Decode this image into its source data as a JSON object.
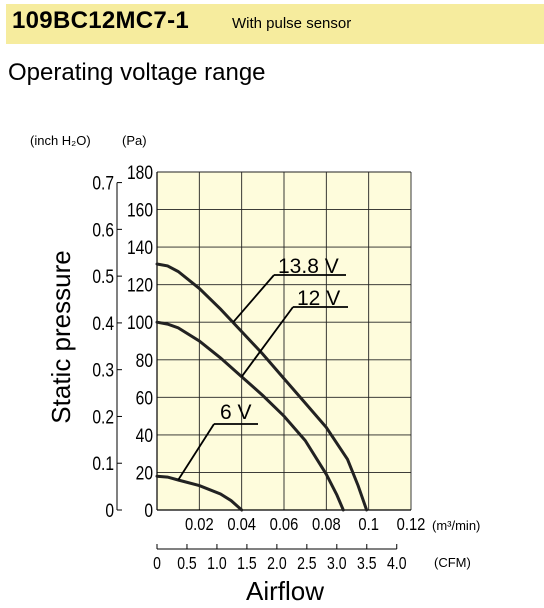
{
  "header": {
    "model": "109BC12MC7-1",
    "subtitle": "With pulse sensor",
    "section_title": "Operating voltage range"
  },
  "chart_data": {
    "type": "line",
    "title": "Operating voltage range",
    "xlabel": "Airflow",
    "ylabel": "Static pressure",
    "x_unit_top": "(m³/min)",
    "x_unit_bottom": "(CFM)",
    "y_unit_left": "(inch H₂O)",
    "y_unit_right": "(Pa)",
    "xlim": [
      0,
      0.12
    ],
    "ylim": [
      0,
      180
    ],
    "x_ticks": [
      "0.02",
      "0.04",
      "0.06",
      "0.08",
      "0.1",
      "0.12"
    ],
    "x_ticks_cfm": [
      "0",
      "0.5",
      "1.0",
      "1.5",
      "2.0",
      "2.5",
      "3.0",
      "3.5",
      "4.0"
    ],
    "y_ticks_pa": [
      "0",
      "20",
      "40",
      "60",
      "80",
      "100",
      "120",
      "140",
      "160",
      "180"
    ],
    "y_ticks_inch": [
      "0",
      "0.1",
      "0.2",
      "0.3",
      "0.4",
      "0.5",
      "0.6",
      "0.7"
    ],
    "grid": true,
    "series": [
      {
        "name": "13.8 V",
        "x": [
          0,
          0.005,
          0.01,
          0.02,
          0.03,
          0.04,
          0.05,
          0.06,
          0.07,
          0.08,
          0.09,
          0.095,
          0.099
        ],
        "y": [
          131,
          130,
          127,
          118,
          107,
          95,
          83,
          70,
          57,
          44,
          27,
          13,
          0
        ]
      },
      {
        "name": "12 V",
        "x": [
          0,
          0.005,
          0.01,
          0.02,
          0.03,
          0.04,
          0.05,
          0.06,
          0.07,
          0.08,
          0.085,
          0.088
        ],
        "y": [
          100,
          99,
          97,
          90,
          81,
          71,
          61,
          50,
          37,
          19,
          8,
          0
        ]
      },
      {
        "name": "6 V",
        "x": [
          0,
          0.005,
          0.01,
          0.02,
          0.03,
          0.035,
          0.04
        ],
        "y": [
          18,
          17.5,
          16,
          13,
          8.5,
          5,
          0
        ]
      }
    ],
    "colors": {
      "plot_bg": "#fefcdc",
      "grid": "#222222",
      "line": "#222222"
    }
  }
}
